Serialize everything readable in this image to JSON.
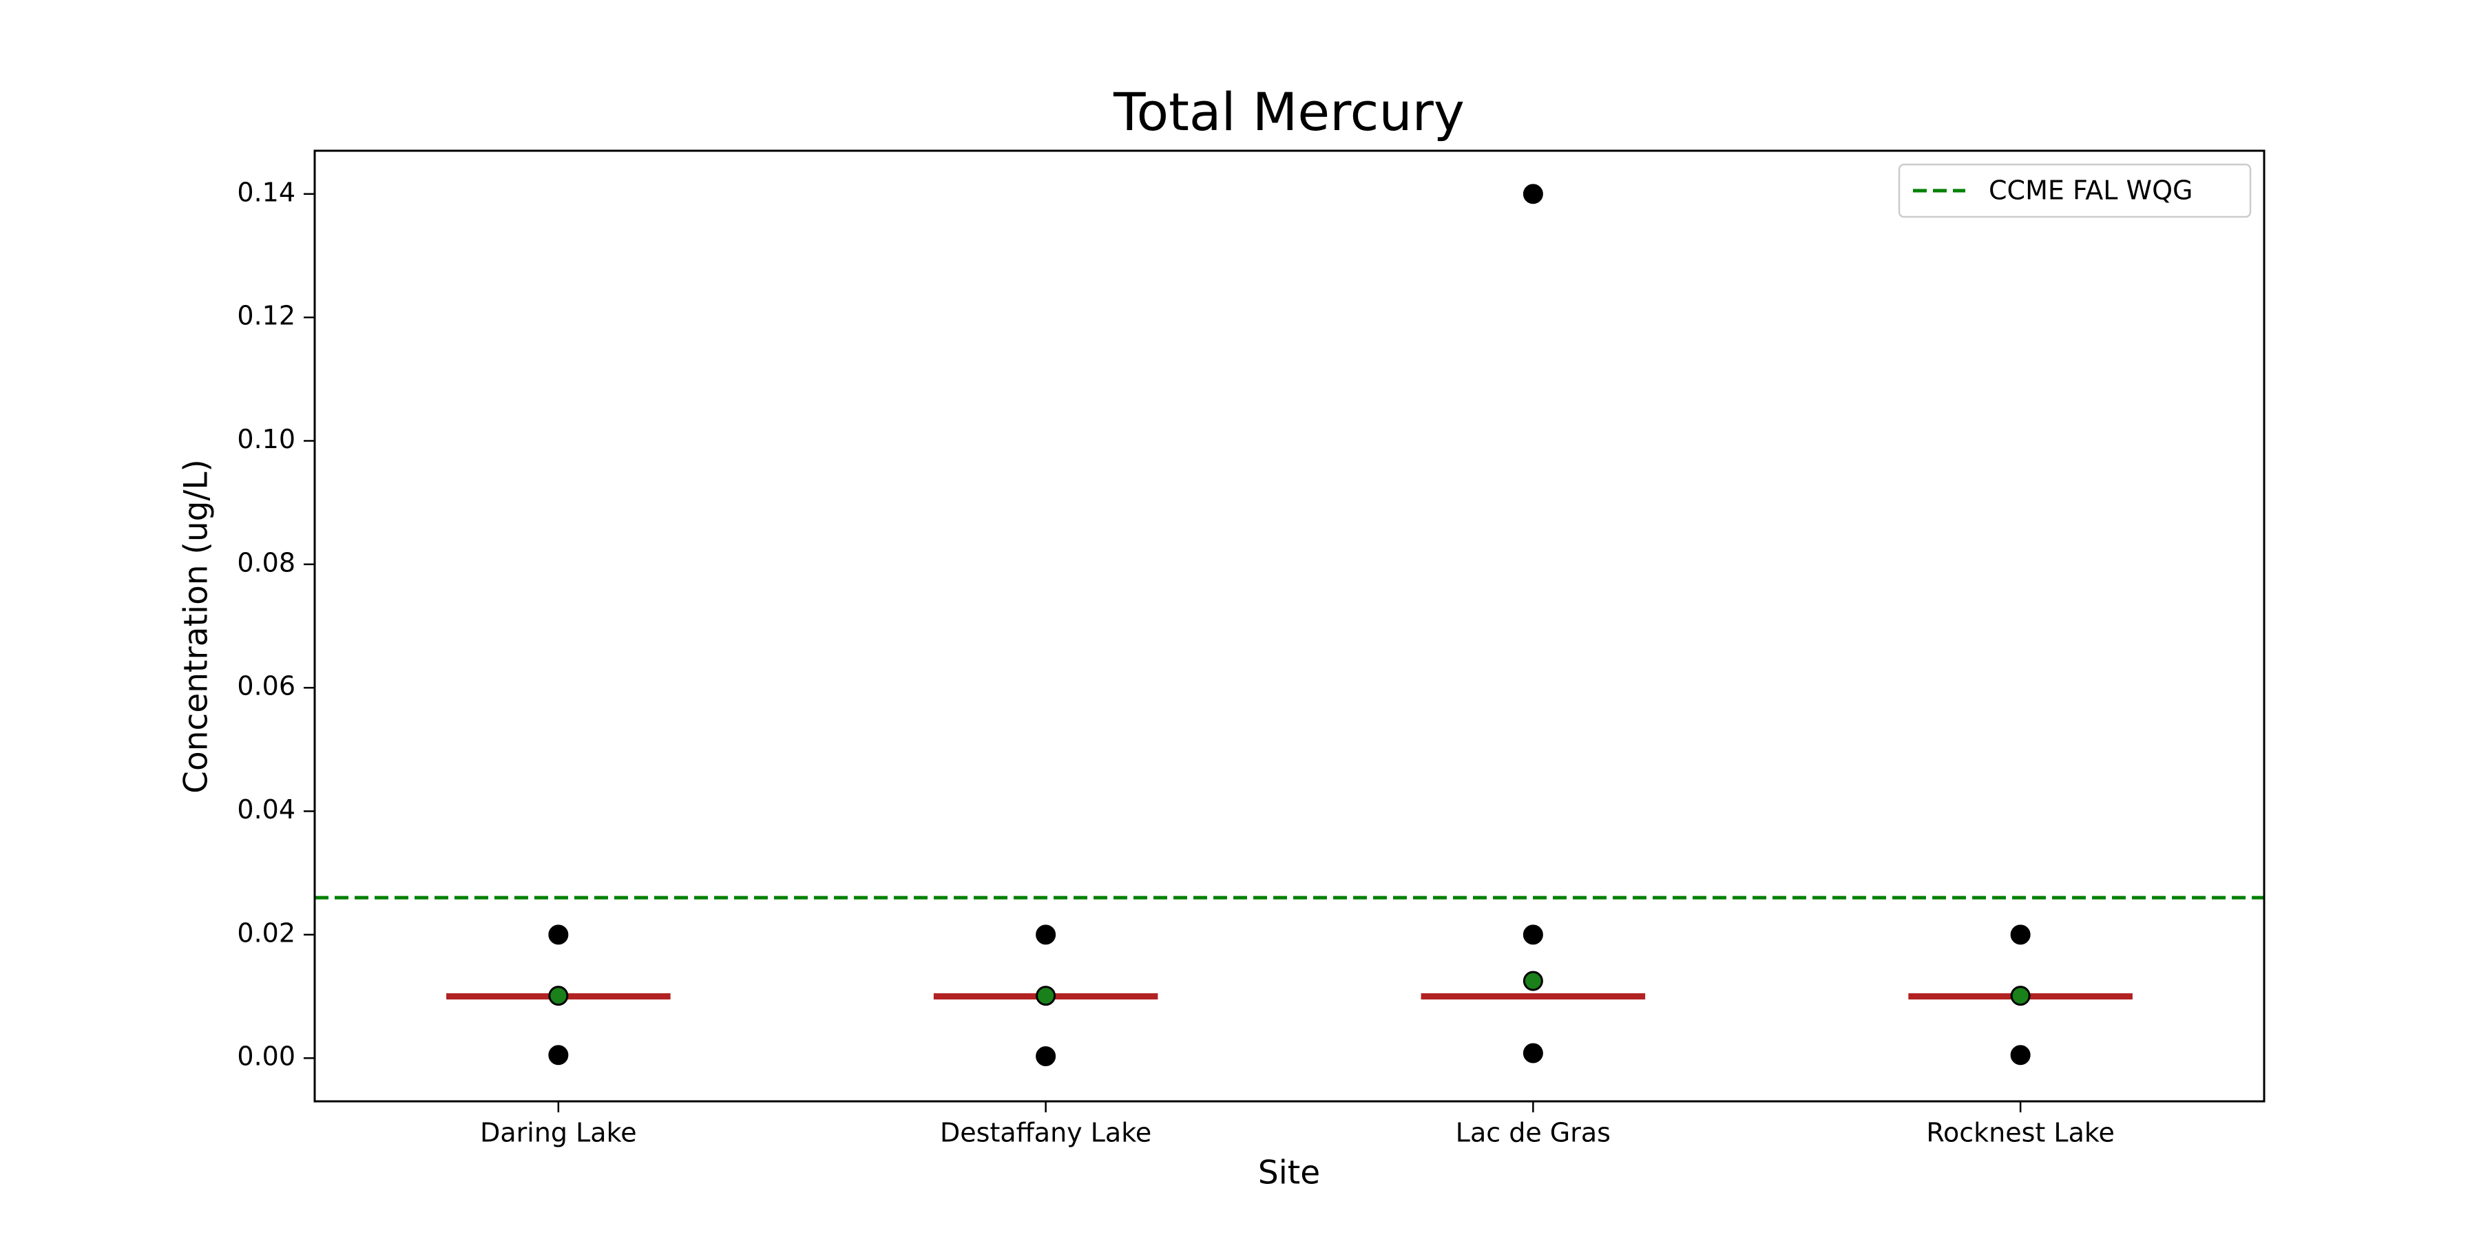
{
  "chart_data": {
    "type": "summary",
    "title": "Total Mercury",
    "x_label": "Site",
    "y_label": "Concentration (ug/L)",
    "categories": [
      "Daring Lake",
      "Destaffany Lake",
      "Lac de Gras",
      "Rocknest Lake"
    ],
    "series": [
      {
        "marker": "dot",
        "color": "#000000",
        "values": [
          0.02,
          0.02,
          0.02,
          0.02
        ]
      },
      {
        "marker": "dot",
        "color": "#000000",
        "values": [
          null,
          null,
          0.14,
          null
        ]
      },
      {
        "marker": "dot",
        "color": "#000000",
        "values": [
          0.0005,
          0.0003,
          0.0008,
          0.0005
        ]
      },
      {
        "marker": "hline",
        "color": "#b22222",
        "values": [
          0.01,
          0.01,
          0.01,
          0.01
        ]
      },
      {
        "marker": "dot",
        "color": "#1a801a",
        "values": [
          0.0101,
          0.0101,
          0.0125,
          0.0101
        ]
      }
    ],
    "guideline": {
      "name": "CCME FAL WQG",
      "value": 0.026,
      "color": "#008000",
      "style": "dashed"
    },
    "legend": "upper right",
    "ylim": [
      -0.007,
      0.147
    ],
    "yticks": [
      {
        "value": 0,
        "label": "0.00"
      },
      0.02,
      0.04,
      0.06,
      0.08,
      {
        "value": 0.1,
        "label": "0.10"
      },
      0.12,
      0.14
    ],
    "grid": false
  }
}
